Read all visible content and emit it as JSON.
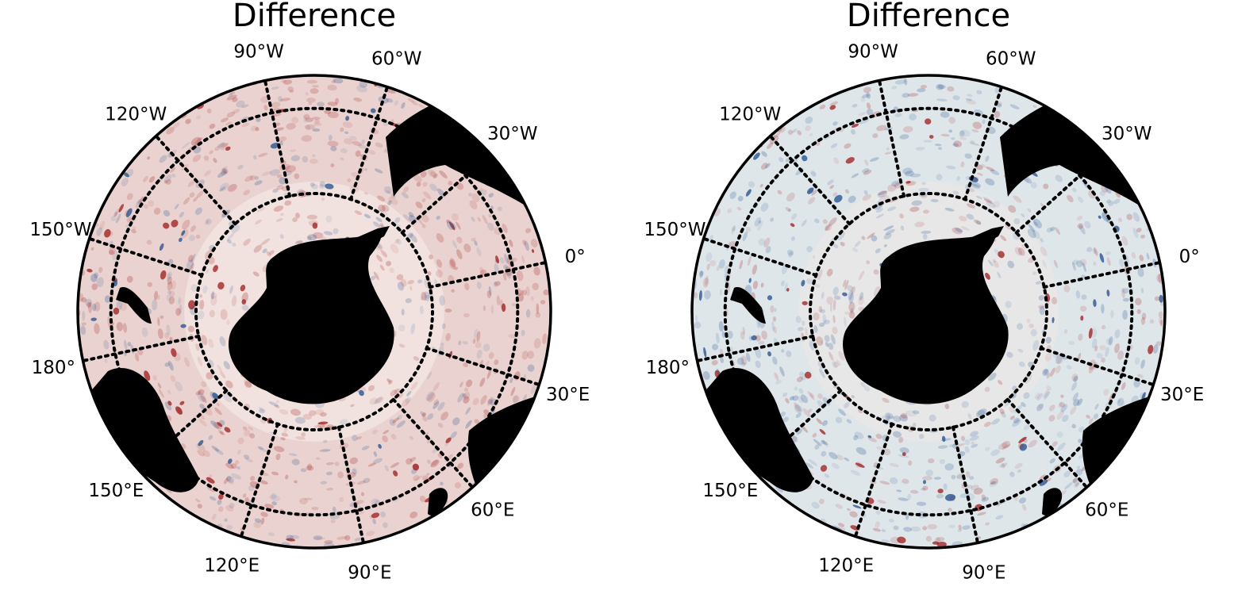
{
  "maps": [
    {
      "title": "Difference",
      "anomaly_tint": "#e9d2cf",
      "labels": [
        {
          "text": "90°W",
          "lon": -90
        },
        {
          "text": "60°W",
          "lon": -60
        },
        {
          "text": "30°W",
          "lon": -30
        },
        {
          "text": "0°",
          "lon": 0
        },
        {
          "text": "30°E",
          "lon": 30
        },
        {
          "text": "60°E",
          "lon": 60
        },
        {
          "text": "90°E",
          "lon": 90
        },
        {
          "text": "120°E",
          "lon": 120
        },
        {
          "text": "150°E",
          "lon": 150
        },
        {
          "text": "180°",
          "lon": 180
        },
        {
          "text": "150°W",
          "lon": -150
        },
        {
          "text": "120°W",
          "lon": -120
        }
      ]
    },
    {
      "title": "Difference",
      "anomaly_tint": "#dfe6ea",
      "labels": [
        {
          "text": "90°W",
          "lon": -90
        },
        {
          "text": "60°W",
          "lon": -60
        },
        {
          "text": "30°W",
          "lon": -30
        },
        {
          "text": "0°",
          "lon": 0
        },
        {
          "text": "30°E",
          "lon": 30
        },
        {
          "text": "60°E",
          "lon": 60
        },
        {
          "text": "90°E",
          "lon": 90
        },
        {
          "text": "120°E",
          "lon": 120
        },
        {
          "text": "150°E",
          "lon": 150
        },
        {
          "text": "180°",
          "lon": 180
        },
        {
          "text": "150°W",
          "lon": -150
        },
        {
          "text": "120°W",
          "lon": -120
        }
      ]
    }
  ],
  "colors": {
    "land": "#000000",
    "positive": "#9e1b1b",
    "negative": "#1f4e8c",
    "gridline": "#000000"
  }
}
